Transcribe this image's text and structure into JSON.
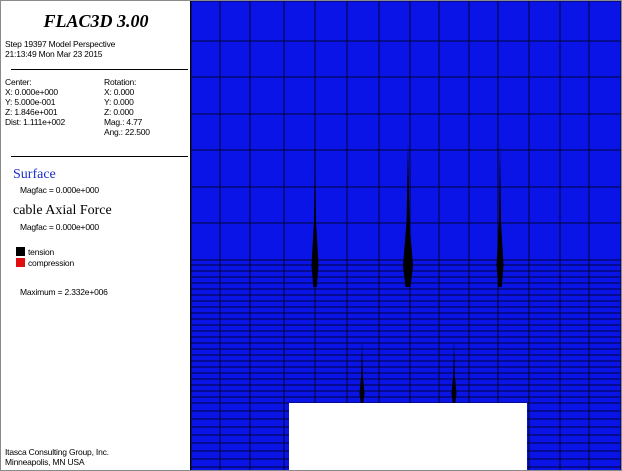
{
  "legend": {
    "title": "FLAC3D 3.00",
    "step_line": "Step 19397  Model Perspective",
    "date_line": "21:13:49 Mon Mar 23 2015",
    "center": {
      "heading": "Center:",
      "x": "X: 0.000e+000",
      "y": "Y: 5.000e-001",
      "z": "Z: 1.846e+001",
      "dist": "Dist: 1.111e+002"
    },
    "rotation": {
      "heading": "Rotation:",
      "x": "X:  0.000",
      "y": "Y:  0.000",
      "z": "Z:  0.000",
      "mag": "Mag.:    4.77",
      "ang": "Ang.:  22.500"
    },
    "surface": {
      "heading": "Surface",
      "magfac": "Magfac =  0.000e+000"
    },
    "cable": {
      "heading": "cable Axial Force",
      "magfac": "Magfac =  0.000e+000",
      "tension_label": "tension",
      "compression_label": "compression",
      "maximum": "Maximum =  2.332e+006"
    },
    "footer": {
      "company": "Itasca Consulting Group, Inc.",
      "location": "Minneapolis, MN  USA"
    }
  },
  "colors": {
    "model_background": "#0a14e6",
    "grid_lines": "#000000",
    "tension": "#000000",
    "compression": "#e01010",
    "surface_heading": "#1a2fd0",
    "excavation": "#ffffff"
  }
}
